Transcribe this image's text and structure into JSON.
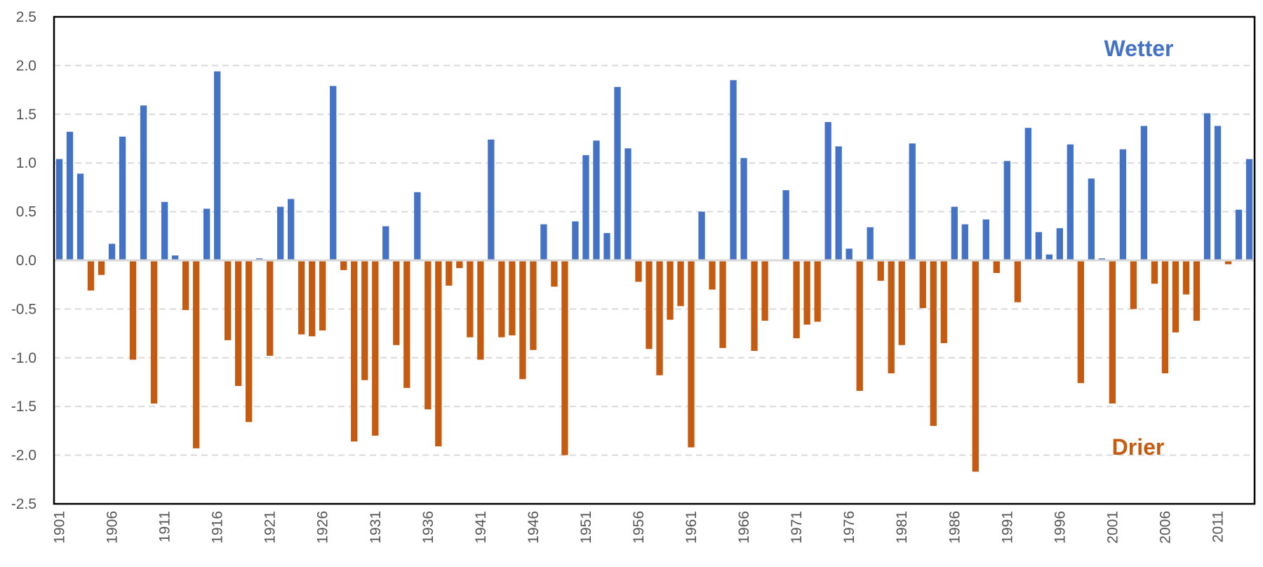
{
  "chart_data": {
    "type": "bar",
    "title": "",
    "xlabel": "",
    "ylabel": "",
    "ylim": [
      -2.5,
      2.5
    ],
    "yticks": [
      2.5,
      2.0,
      1.5,
      1.0,
      0.5,
      0.0,
      -0.5,
      -1.0,
      -1.5,
      -2.0,
      -2.5
    ],
    "ytick_labels": [
      "2.5",
      "2.0",
      "1.5",
      "1.0",
      "0.5",
      "0.0",
      "-0.5",
      "-1.0",
      "-1.5",
      "-2.0",
      "-2.5"
    ],
    "grid": true,
    "x_start": 1901,
    "x_end": 2014,
    "xtick_labels": [
      "1901",
      "1906",
      "1911",
      "1916",
      "1921",
      "1926",
      "1931",
      "1936",
      "1941",
      "1946",
      "1951",
      "1956",
      "1961",
      "1966",
      "1971",
      "1976",
      "1981",
      "1986",
      "1991",
      "1996",
      "2001",
      "2006",
      "2011"
    ],
    "values": [
      1.04,
      1.32,
      0.89,
      -0.31,
      -0.15,
      0.17,
      1.27,
      -1.02,
      1.59,
      -1.47,
      0.6,
      0.05,
      -0.51,
      -1.93,
      0.53,
      1.94,
      -0.82,
      -1.29,
      -1.66,
      0.02,
      -0.98,
      0.55,
      0.63,
      -0.76,
      -0.78,
      -0.72,
      1.79,
      -0.1,
      -1.86,
      -1.23,
      -1.8,
      0.35,
      -0.87,
      -1.31,
      0.7,
      -1.53,
      -1.91,
      -0.26,
      -0.08,
      -0.79,
      -1.02,
      1.24,
      -0.79,
      -0.77,
      -1.22,
      -0.92,
      0.37,
      -0.27,
      -2.0,
      0.4,
      1.08,
      1.23,
      0.28,
      1.78,
      1.15,
      -0.22,
      -0.91,
      -1.18,
      -0.61,
      -0.47,
      -1.92,
      0.5,
      -0.3,
      -0.9,
      1.85,
      1.05,
      -0.93,
      -0.62,
      0.0,
      0.72,
      -0.8,
      -0.66,
      -0.63,
      1.42,
      1.17,
      0.12,
      -1.34,
      0.34,
      -0.21,
      -1.16,
      -0.87,
      1.2,
      -0.49,
      -1.7,
      -0.85,
      0.55,
      0.37,
      -2.17,
      0.42,
      -0.13,
      1.02,
      -0.43,
      1.36,
      0.29,
      0.06,
      0.33,
      1.19,
      -1.26,
      0.84,
      0.02,
      -1.47,
      1.14,
      -0.5,
      1.38,
      -0.24,
      -1.16,
      -0.74,
      -0.35,
      -0.62,
      1.51,
      1.38,
      -0.04,
      0.52,
      1.04
    ],
    "positive_label": "Wetter",
    "negative_label": "Drier",
    "positive_color": "#4472c4",
    "negative_color": "#c55a11",
    "axis_color": "#000000",
    "grid_color": "#d9d9d9",
    "zero_line_color": "#d9d9d9"
  }
}
